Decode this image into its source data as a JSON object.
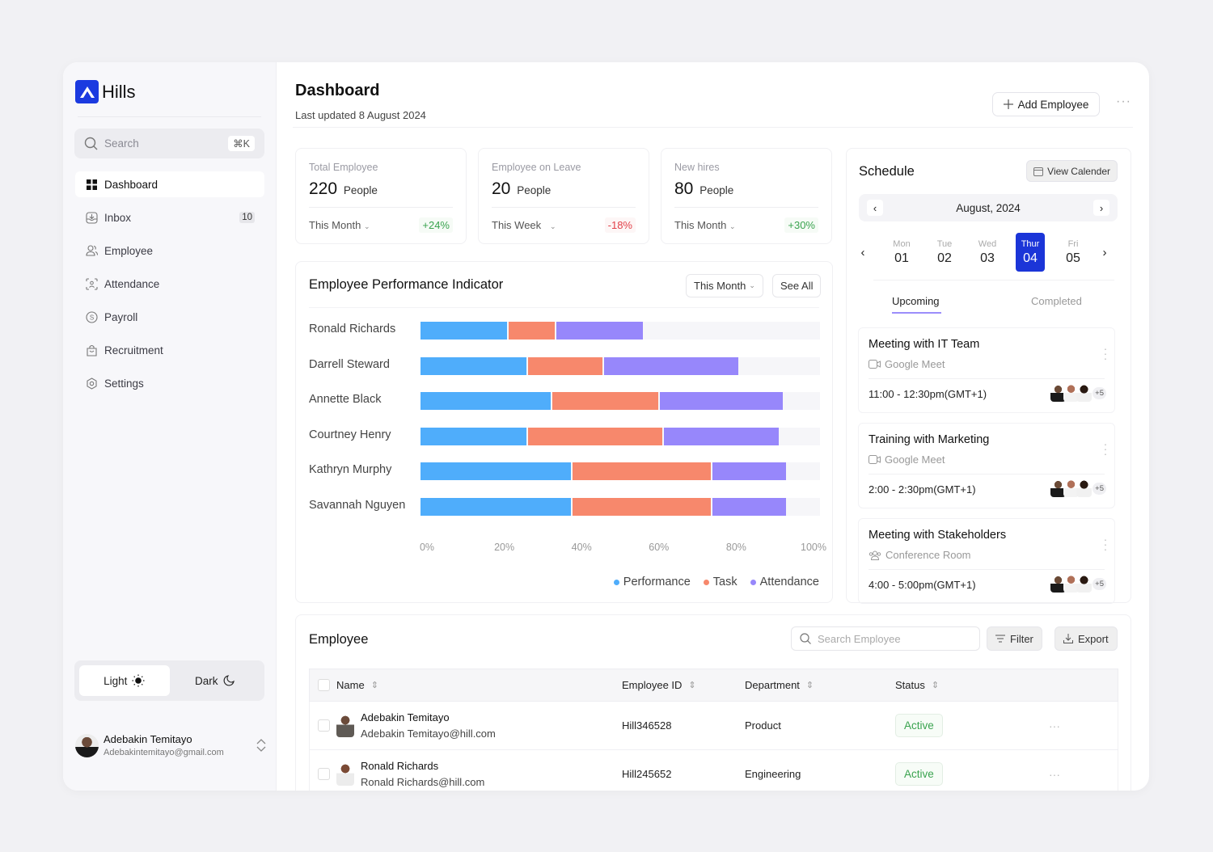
{
  "brand": {
    "name": "Hills",
    "logo_icon": "hills-logo-icon",
    "accent": "#1b3ae0"
  },
  "sidebar": {
    "search": {
      "placeholder": "Search",
      "shortcut": "⌘K"
    },
    "items": [
      {
        "label": "Dashboard",
        "icon": "grid-icon",
        "active": true
      },
      {
        "label": "Inbox",
        "icon": "inbox-icon",
        "badge": "10"
      },
      {
        "label": "Employee",
        "icon": "users-icon"
      },
      {
        "label": "Attendance",
        "icon": "face-scan-icon"
      },
      {
        "label": "Payroll",
        "icon": "dollar-circle-icon"
      },
      {
        "label": "Recruitment",
        "icon": "bag-icon"
      },
      {
        "label": "Settings",
        "icon": "gear-icon"
      }
    ],
    "theme": {
      "light_label": "Light",
      "dark_label": "Dark",
      "selected": "Light"
    },
    "user": {
      "name": "Adebakin Temitayo",
      "email": "Adebakintemitayo@gmail.com"
    }
  },
  "header": {
    "title": "Dashboard",
    "subtitle": "Last updated 8 August 2024",
    "add_button": "Add Employee",
    "more": "···"
  },
  "stats": [
    {
      "title": "Total Employee",
      "value": "220",
      "unit": "People",
      "period": "This Month",
      "change": "+24%",
      "trend": "up"
    },
    {
      "title": "Employee on Leave",
      "value": "20",
      "unit": "People",
      "period": "This Week",
      "change": "-18%",
      "trend": "down"
    },
    {
      "title": "New hires",
      "value": "80",
      "unit": "People",
      "period": "This Month",
      "change": "+30%",
      "trend": "up"
    }
  ],
  "performance": {
    "title": "Employee Performance Indicator",
    "period_button": "This Month",
    "see_all": "See All"
  },
  "chart_data": {
    "type": "bar",
    "orientation": "horizontal",
    "stacked": true,
    "title": "Employee Performance Indicator",
    "categories": [
      "Ronald Richards",
      "Darrell Steward",
      "Annette Black",
      "Courtney Henry",
      "Kathryn Murphy",
      "Savannah Nguyen"
    ],
    "series": [
      {
        "name": "Performance",
        "color": "#4fadfb",
        "values": [
          22,
          27,
          33,
          27,
          38,
          38
        ]
      },
      {
        "name": "Task",
        "color": "#f7886c",
        "values": [
          12,
          19,
          27,
          34,
          35,
          35
        ]
      },
      {
        "name": "Attendance",
        "color": "#9787fb",
        "values": [
          22,
          34,
          31,
          29,
          19,
          19
        ]
      }
    ],
    "xlim": [
      0,
      100
    ],
    "xticks": [
      "0%",
      "20%",
      "40%",
      "60%",
      "80%",
      "100%"
    ],
    "xlabel": "",
    "ylabel": "",
    "legend": "bottom-right",
    "grid": false
  },
  "schedule": {
    "title": "Schedule",
    "view_calendar": "View Calender",
    "month": "August, 2024",
    "days": [
      {
        "name": "Mon",
        "date": "01"
      },
      {
        "name": "Tue",
        "date": "02"
      },
      {
        "name": "Wed",
        "date": "03"
      },
      {
        "name": "Thur",
        "date": "04",
        "selected": true
      },
      {
        "name": "Fri",
        "date": "05"
      }
    ],
    "tabs": {
      "upcoming": "Upcoming",
      "completed": "Completed",
      "active": "Upcoming"
    },
    "events": [
      {
        "title": "Meeting with IT Team",
        "location": "Google Meet",
        "location_icon": "video-icon",
        "time": "11:00 - 12:30pm(GMT+1)",
        "extra_attendees": "+5"
      },
      {
        "title": "Training with Marketing",
        "location": "Google Meet",
        "location_icon": "video-icon",
        "time": "2:00 - 2:30pm(GMT+1)",
        "extra_attendees": "+5"
      },
      {
        "title": "Meeting with Stakeholders",
        "location": "Conference Room",
        "location_icon": "users-icon",
        "time": "4:00 - 5:00pm(GMT+1)",
        "extra_attendees": "+5"
      }
    ]
  },
  "employees": {
    "title": "Employee",
    "search_placeholder": "Search Employee",
    "filter": "Filter",
    "export": "Export",
    "columns": [
      "Name",
      "Employee ID",
      "Department",
      "Status"
    ],
    "rows": [
      {
        "name": "Adebakin Temitayo",
        "email": "Adebakin Temitayo@hill.com",
        "id": "Hill346528",
        "department": "Product",
        "status": "Active"
      },
      {
        "name": "Ronald Richards",
        "email": "Ronald Richards@hill.com",
        "id": "Hill245652",
        "department": "Engineering",
        "status": "Active"
      }
    ]
  }
}
